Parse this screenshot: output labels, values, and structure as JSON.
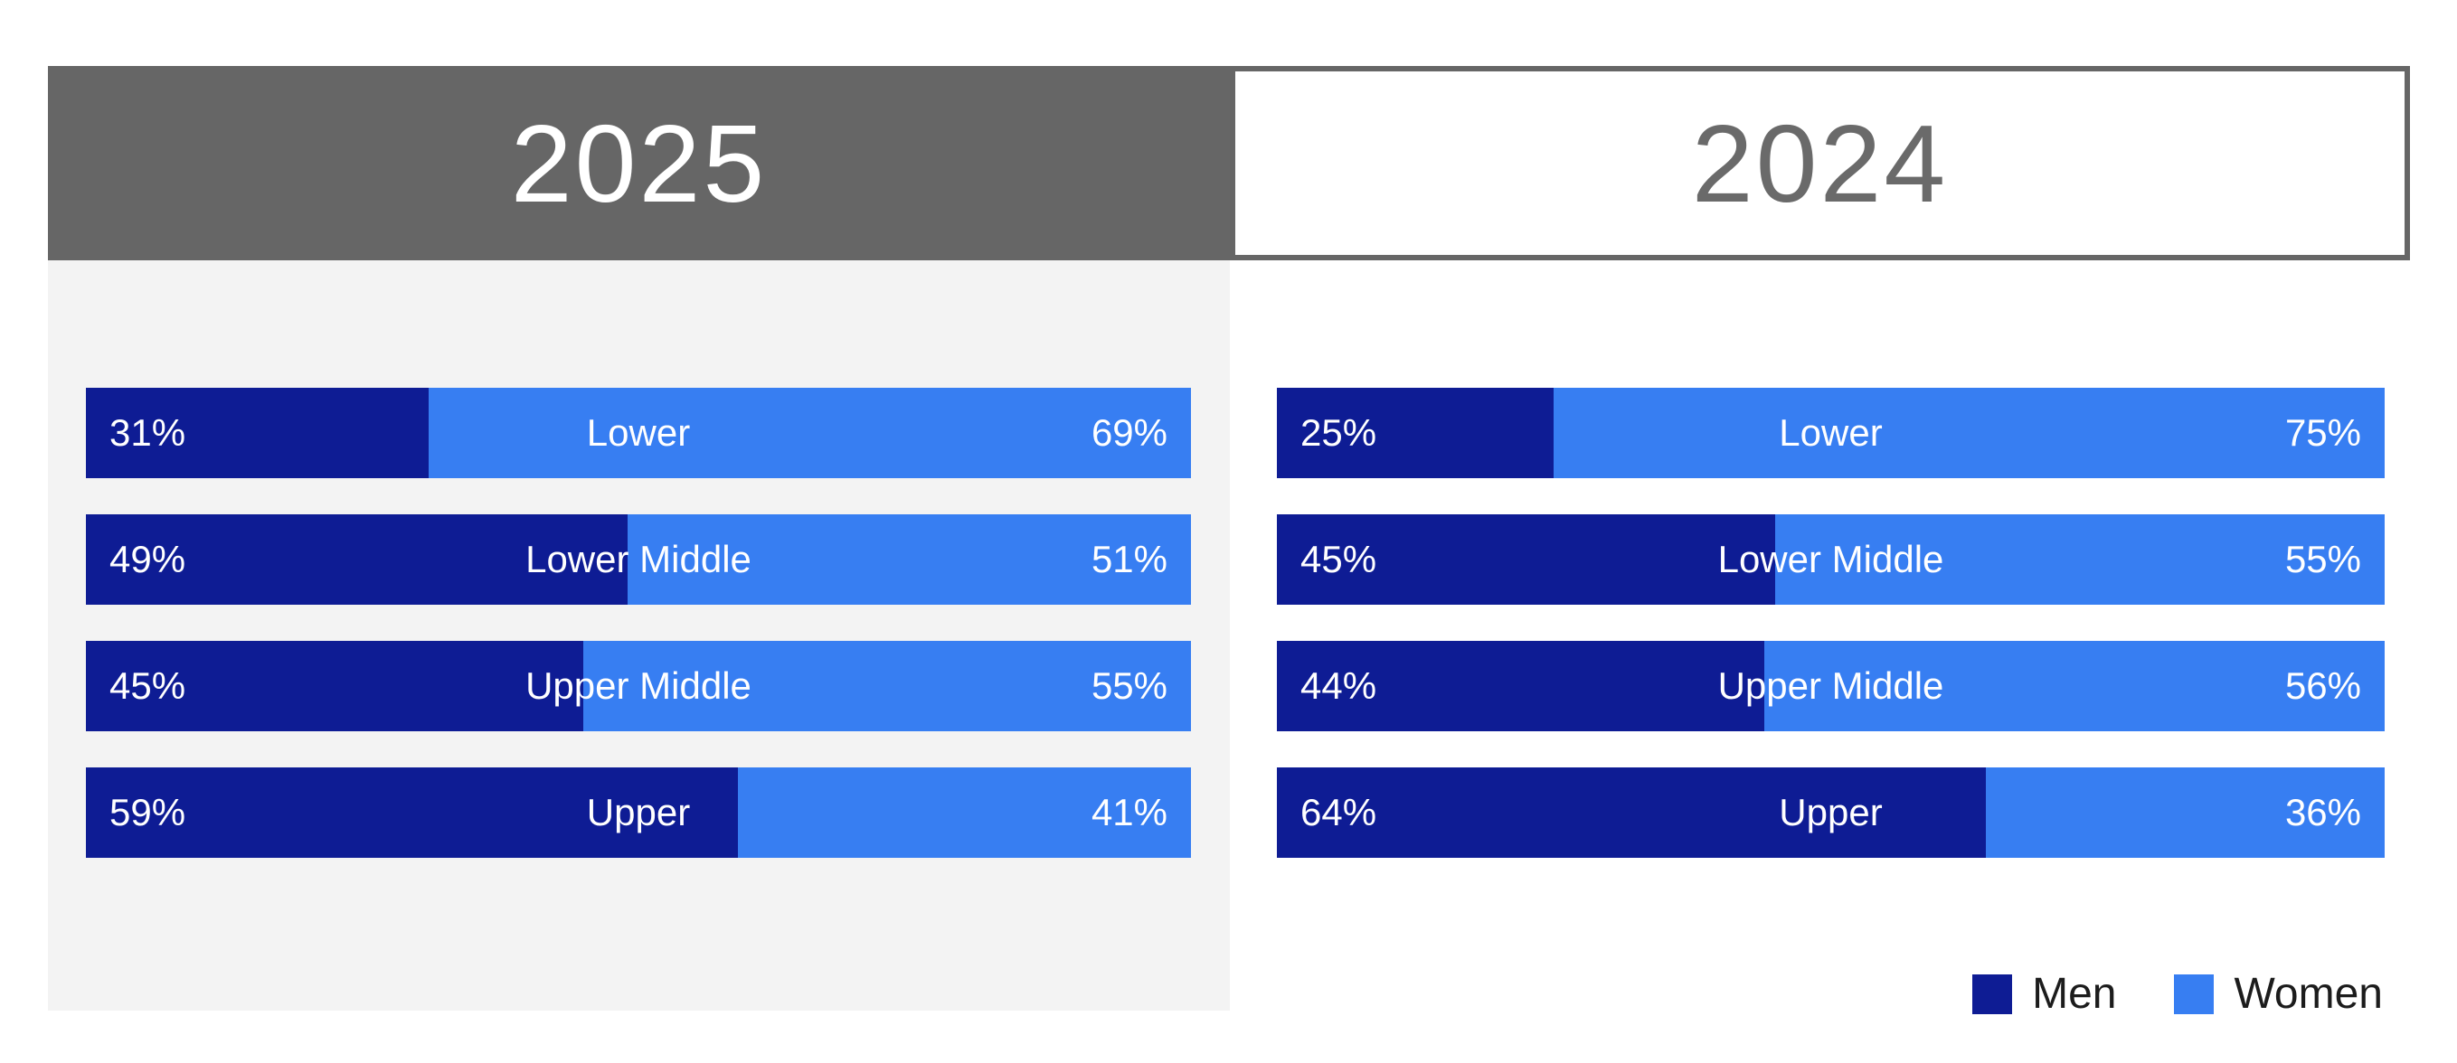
{
  "chart_data": {
    "type": "bar",
    "subtype": "horizontal-100pct-stacked",
    "orientation": "horizontal",
    "value_suffix": "%",
    "categories": [
      "Lower",
      "Lower Middle",
      "Upper Middle",
      "Upper"
    ],
    "panels": [
      {
        "title": "2025",
        "header_style": "filled-gray",
        "series": [
          {
            "name": "Men",
            "values": [
              31,
              49,
              45,
              59
            ]
          },
          {
            "name": "Women",
            "values": [
              69,
              51,
              55,
              41
            ]
          }
        ]
      },
      {
        "title": "2024",
        "header_style": "outlined-gray",
        "series": [
          {
            "name": "Men",
            "values": [
              25,
              45,
              44,
              64
            ]
          },
          {
            "name": "Women",
            "values": [
              75,
              55,
              56,
              36
            ]
          }
        ]
      }
    ],
    "legend": {
      "position": "bottom-right",
      "entries": [
        {
          "label": "Men",
          "color": "#0e1c94"
        },
        {
          "label": "Women",
          "color": "#377ef2"
        }
      ]
    },
    "colors": {
      "men": "#0e1c94",
      "women": "#377ef2",
      "header_gray": "#666666",
      "panel_background": "#f3f3f3",
      "bar_text": "#ffffff",
      "outlined_header_text": "#6a6a6a",
      "legend_text": "#1c1c1c"
    }
  }
}
